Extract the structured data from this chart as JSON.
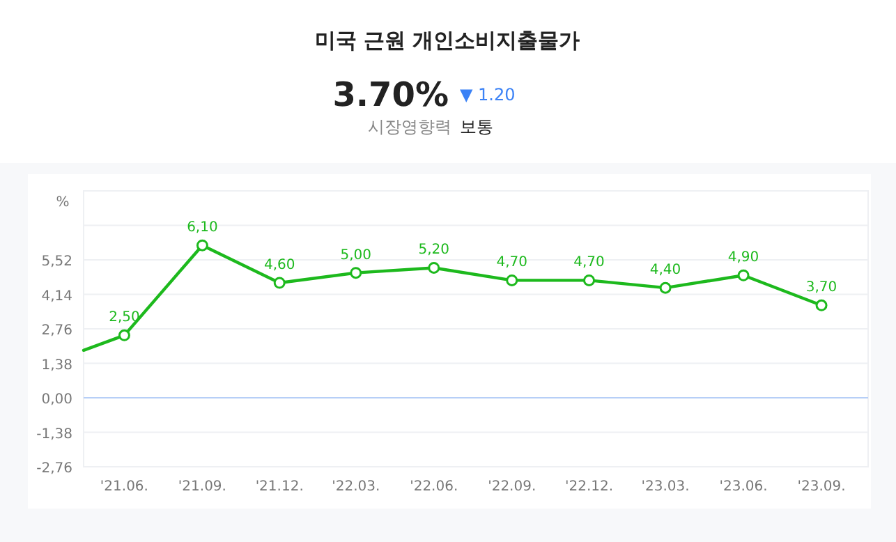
{
  "chart_data": {
    "type": "line",
    "title": "미국 근원 개인소비지출물가",
    "annotations": [
      "3.70%",
      "▼ 1.20",
      "시장영향력",
      "보통"
    ],
    "ylabel": "%",
    "x": [
      "2021-04-14",
      "2021-06",
      "2021-09",
      "2021-12",
      "2022-03",
      "2022-06",
      "2022-09",
      "2022-12",
      "2023-03",
      "2023-06",
      "2023-09"
    ],
    "series": [
      {
        "color": "#1db91d",
        "values": [
          1.9,
          2.5,
          6.1,
          4.6,
          5.0,
          5.2,
          4.7,
          4.7,
          4.4,
          4.9,
          3.7
        ],
        "value_labels": [
          null,
          "2,50",
          "6,10",
          "4,60",
          "5,00",
          "5,20",
          "4,70",
          "4,70",
          "4,40",
          "4,90",
          "3,70"
        ]
      }
    ],
    "xlim": [
      "2021-04-14",
      "2023-10-26"
    ],
    "ylim": [
      -2.76,
      8.28
    ],
    "yticks": [
      {
        "value": -2.76,
        "label": "-2,76"
      },
      {
        "value": -1.38,
        "label": "-1,38"
      },
      {
        "value": 0,
        "label": "0,00"
      },
      {
        "value": 1.38,
        "label": "1,38"
      },
      {
        "value": 2.76,
        "label": "2,76"
      },
      {
        "value": 4.14,
        "label": "4,14"
      },
      {
        "value": 5.52,
        "label": "5,52"
      },
      {
        "value": 6.9,
        "label": null
      },
      {
        "value": 8.28,
        "label": null
      }
    ],
    "xticks": [
      {
        "value": "2021-06",
        "label": "'21.06."
      },
      {
        "value": "2021-09",
        "label": "'21.09."
      },
      {
        "value": "2021-12",
        "label": "'21.12."
      },
      {
        "value": "2022-03",
        "label": "'22.03."
      },
      {
        "value": "2022-06",
        "label": "'22.06."
      },
      {
        "value": "2022-09",
        "label": "'22.09."
      },
      {
        "value": "2022-12",
        "label": "'22.12."
      },
      {
        "value": "2023-03",
        "label": "'23.03."
      },
      {
        "value": "2023-06",
        "label": "'23.06."
      },
      {
        "value": "2023-09",
        "label": "'23.09."
      }
    ],
    "ref_lines": [
      {
        "axis": "y",
        "value": 0,
        "color": "#b7cff7"
      }
    ],
    "grid": "y",
    "marker": "circle",
    "line_style": "solid"
  }
}
